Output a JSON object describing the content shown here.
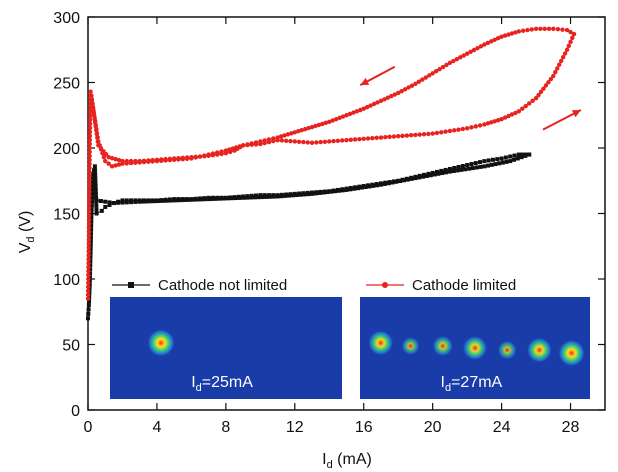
{
  "chart_data": {
    "type": "scatter",
    "title": "",
    "xlabel": "I",
    "xlabel_sub": "d",
    "xlabel_unit": " (mA)",
    "ylabel": "V",
    "ylabel_sub": "d",
    "ylabel_unit": " (V)",
    "xlim": [
      0,
      30
    ],
    "ylim": [
      0,
      300
    ],
    "xticks": [
      0,
      4,
      8,
      12,
      16,
      20,
      24,
      28
    ],
    "yticks": [
      0,
      50,
      100,
      150,
      200,
      250,
      300
    ],
    "colors": {
      "series1": "#111111",
      "series2": "#e8231f",
      "inset_bg": "#1a3ca8"
    },
    "legend_placement": "bottom, above insets",
    "series": [
      {
        "name": "Cathode not limited",
        "marker": "square",
        "color": "#111111",
        "points": [
          [
            0.0,
            70
          ],
          [
            0.05,
            80
          ],
          [
            0.1,
            95
          ],
          [
            0.15,
            120
          ],
          [
            0.2,
            150
          ],
          [
            0.3,
            180
          ],
          [
            0.4,
            186
          ],
          [
            0.5,
            150
          ],
          [
            0.8,
            152
          ],
          [
            1.0,
            155
          ],
          [
            1.5,
            158
          ],
          [
            2,
            160
          ],
          [
            3,
            160
          ],
          [
            4,
            160
          ],
          [
            5,
            161
          ],
          [
            6,
            161
          ],
          [
            7,
            162
          ],
          [
            8,
            162
          ],
          [
            9,
            163
          ],
          [
            10,
            164
          ],
          [
            11,
            164
          ],
          [
            12,
            165
          ],
          [
            13,
            166
          ],
          [
            14,
            167
          ],
          [
            15,
            169
          ],
          [
            16,
            171
          ],
          [
            17,
            173
          ],
          [
            18,
            175
          ],
          [
            19,
            178
          ],
          [
            20,
            181
          ],
          [
            21,
            184
          ],
          [
            22,
            187
          ],
          [
            23,
            190
          ],
          [
            24,
            192
          ],
          [
            25,
            195
          ],
          [
            25.6,
            195
          ]
        ],
        "return_points": [
          [
            25.6,
            195
          ],
          [
            24.5,
            190
          ],
          [
            23,
            186
          ],
          [
            21,
            182
          ],
          [
            19,
            177
          ],
          [
            17,
            172
          ],
          [
            15,
            168
          ],
          [
            13,
            165
          ],
          [
            11,
            163
          ],
          [
            9,
            162
          ],
          [
            7,
            161
          ],
          [
            5,
            160
          ],
          [
            3,
            159
          ],
          [
            1.5,
            158
          ],
          [
            0.5,
            160
          ]
        ]
      },
      {
        "name": "Cathode limited",
        "marker": "circle",
        "color": "#e8231f",
        "points": [
          [
            0.0,
            85
          ],
          [
            0.05,
            130
          ],
          [
            0.1,
            200
          ],
          [
            0.15,
            243
          ],
          [
            0.3,
            230
          ],
          [
            0.6,
            205
          ],
          [
            1.0,
            190
          ],
          [
            1.4,
            186
          ],
          [
            2,
            188
          ],
          [
            3,
            189
          ],
          [
            4,
            190
          ],
          [
            5,
            191
          ],
          [
            6,
            192
          ],
          [
            7,
            195
          ],
          [
            8,
            198
          ],
          [
            9,
            202
          ],
          [
            10,
            205
          ],
          [
            11,
            208
          ],
          [
            12,
            212
          ],
          [
            13,
            216
          ],
          [
            14,
            220
          ],
          [
            15,
            225
          ],
          [
            16,
            230
          ],
          [
            17,
            236
          ],
          [
            18,
            242
          ],
          [
            19,
            249
          ],
          [
            20,
            257
          ],
          [
            21,
            265
          ],
          [
            22,
            272
          ],
          [
            23,
            279
          ],
          [
            24,
            285
          ],
          [
            25,
            289
          ],
          [
            26,
            291
          ],
          [
            27,
            291
          ],
          [
            27.8,
            290
          ],
          [
            28.2,
            287
          ]
        ],
        "return_points": [
          [
            28.2,
            287
          ],
          [
            27.8,
            275
          ],
          [
            27,
            255
          ],
          [
            26,
            238
          ],
          [
            25,
            228
          ],
          [
            24,
            222
          ],
          [
            23,
            218
          ],
          [
            22,
            215
          ],
          [
            21,
            213
          ],
          [
            20,
            211
          ],
          [
            19,
            210
          ],
          [
            18,
            209
          ],
          [
            17,
            208
          ],
          [
            16,
            207
          ],
          [
            15,
            206
          ],
          [
            14,
            205
          ],
          [
            13,
            204
          ],
          [
            12,
            205
          ],
          [
            11,
            206
          ],
          [
            10,
            203
          ],
          [
            9,
            202
          ],
          [
            8.5,
            198
          ],
          [
            8,
            196
          ],
          [
            7,
            194
          ],
          [
            6,
            193
          ],
          [
            5,
            192
          ],
          [
            4,
            191
          ],
          [
            3,
            190
          ],
          [
            2,
            190
          ],
          [
            1.2,
            193
          ],
          [
            0.6,
            202
          ],
          [
            0.2,
            240
          ]
        ]
      }
    ],
    "annotations": [
      {
        "text": "←",
        "meaning": "arrow pointing toward decreasing current on upper branch"
      },
      {
        "text": "→",
        "meaning": "arrow pointing toward increasing current on lower branch"
      }
    ],
    "insets": [
      {
        "label": "I",
        "label_sub": "d",
        "label_value": "=25mA",
        "spots": [
          [
            0.22,
            0.45,
            1.0
          ]
        ]
      },
      {
        "label": "I",
        "label_sub": "d",
        "label_value": "=27mA",
        "spots": [
          [
            0.09,
            0.45,
            0.85
          ],
          [
            0.22,
            0.48,
            0.4
          ],
          [
            0.36,
            0.48,
            0.55
          ],
          [
            0.5,
            0.5,
            0.8
          ],
          [
            0.64,
            0.52,
            0.45
          ],
          [
            0.78,
            0.52,
            0.85
          ],
          [
            0.92,
            0.55,
            0.95
          ]
        ]
      }
    ]
  }
}
